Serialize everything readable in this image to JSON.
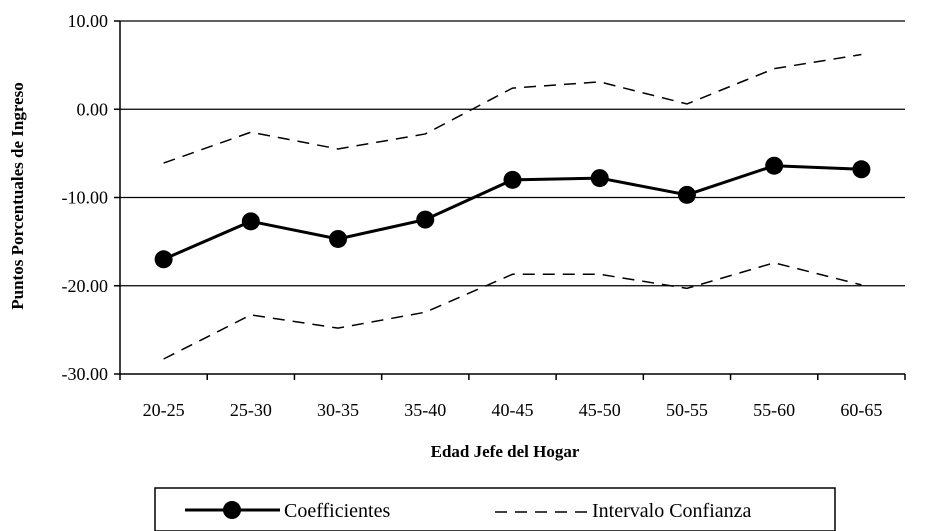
{
  "chart_data": {
    "type": "line",
    "title": "",
    "xlabel": "Edad Jefe del Hogar",
    "ylabel": "Puntos Porcentuales de Ingreso",
    "categories": [
      "20-25",
      "25-30",
      "30-35",
      "35-40",
      "40-45",
      "45-50",
      "50-55",
      "55-60",
      "60-65"
    ],
    "yticks": [
      "10.00",
      "0.00",
      "-10.00",
      "-20.00",
      "-30.00"
    ],
    "ylim": [
      -30,
      10
    ],
    "grid": "horizontal lines at each y tick",
    "legend_position": "bottom",
    "series": [
      {
        "name": "Coefficientes",
        "style": "solid-with-circle-markers",
        "color": "#000000",
        "values": [
          -17.0,
          -12.7,
          -14.7,
          -12.5,
          -8.0,
          -7.8,
          -9.7,
          -6.4,
          -6.8
        ]
      },
      {
        "name": "Intervalo Confianza",
        "style": "dashed-upper",
        "color": "#000000",
        "values": [
          -6.1,
          -2.6,
          -4.5,
          -2.8,
          2.4,
          3.1,
          0.6,
          4.6,
          6.2
        ]
      },
      {
        "name": "Intervalo Confianza",
        "style": "dashed-lower",
        "color": "#000000",
        "values": [
          -28.3,
          -23.3,
          -24.8,
          -23.0,
          -18.7,
          -18.7,
          -20.3,
          -17.4,
          -19.9
        ]
      }
    ]
  },
  "legend": {
    "items": [
      {
        "label": "Coefficientes"
      },
      {
        "label": "Intervalo Confianza"
      }
    ]
  }
}
